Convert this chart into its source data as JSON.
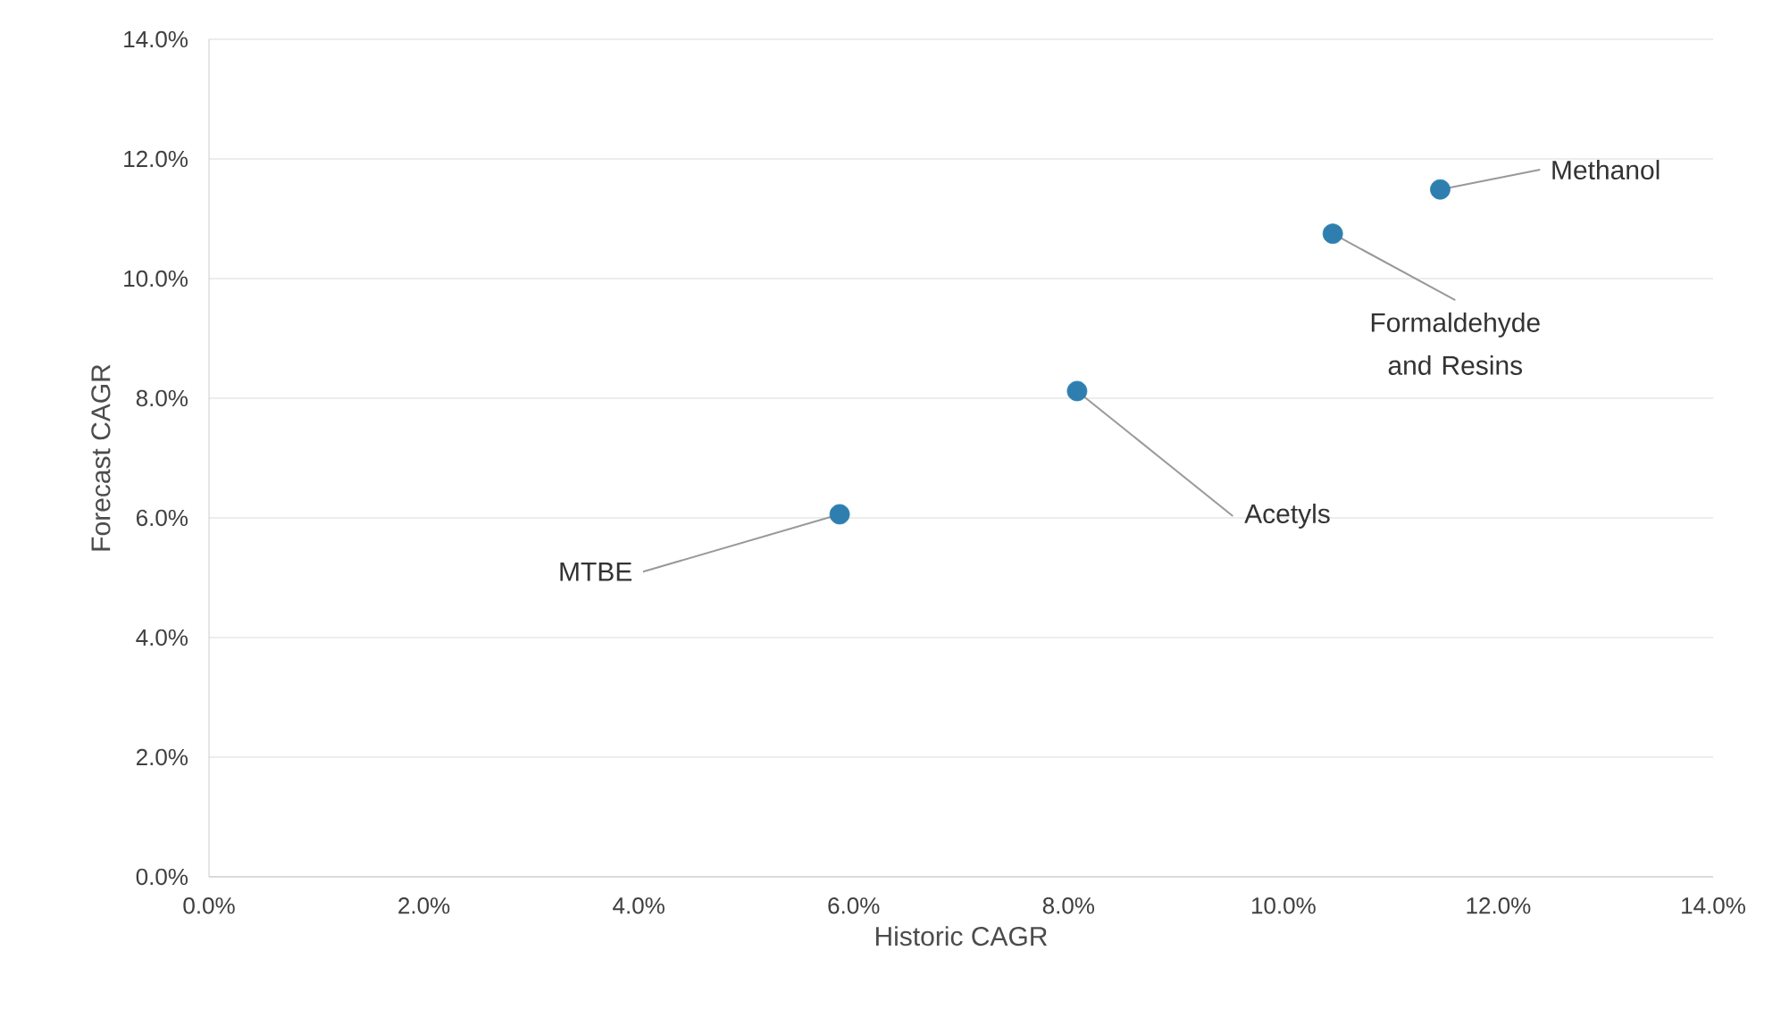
{
  "chart_data": {
    "type": "scatter",
    "xlabel": "Historic CAGR",
    "ylabel": "Forecast CAGR",
    "x": [
      5.87,
      8.08,
      10.46,
      11.46
    ],
    "series": [
      {
        "color": "#2e7fb0",
        "values": [
          6.06,
          8.12,
          10.75,
          11.49
        ]
      }
    ],
    "xlim": [
      0,
      14
    ],
    "ylim": [
      0,
      14
    ],
    "xticks": [
      {
        "value": 0,
        "label": "0.0%"
      },
      {
        "value": 2,
        "label": "2.0%"
      },
      {
        "value": 4,
        "label": "4.0%"
      },
      {
        "value": 6,
        "label": "6.0%"
      },
      {
        "value": 8,
        "label": "8.0%"
      },
      {
        "value": 10,
        "label": "10.0%"
      },
      {
        "value": 12,
        "label": "12.0%"
      },
      {
        "value": 14,
        "label": "14.0%"
      }
    ],
    "yticks": [
      {
        "value": 0,
        "label": "0.0%"
      },
      {
        "value": 2,
        "label": "2.0%"
      },
      {
        "value": 4,
        "label": "4.0%"
      },
      {
        "value": 6,
        "label": "6.0%"
      },
      {
        "value": 8,
        "label": "8.0%"
      },
      {
        "value": 10,
        "label": "10.0%"
      },
      {
        "value": 12,
        "label": "12.0%"
      },
      {
        "value": 14,
        "label": "14.0%"
      }
    ],
    "grid": "y",
    "marker": "circle",
    "annotations": [
      {
        "text": "MTBE",
        "x": 5.87,
        "y": 6.06
      },
      {
        "text": "Acetyls",
        "x": 8.08,
        "y": 8.12
      },
      {
        "text": "Formaldehyde and Resins",
        "x": 10.46,
        "y": 10.75
      },
      {
        "text": "Methanol",
        "x": 11.46,
        "y": 11.49
      }
    ]
  }
}
